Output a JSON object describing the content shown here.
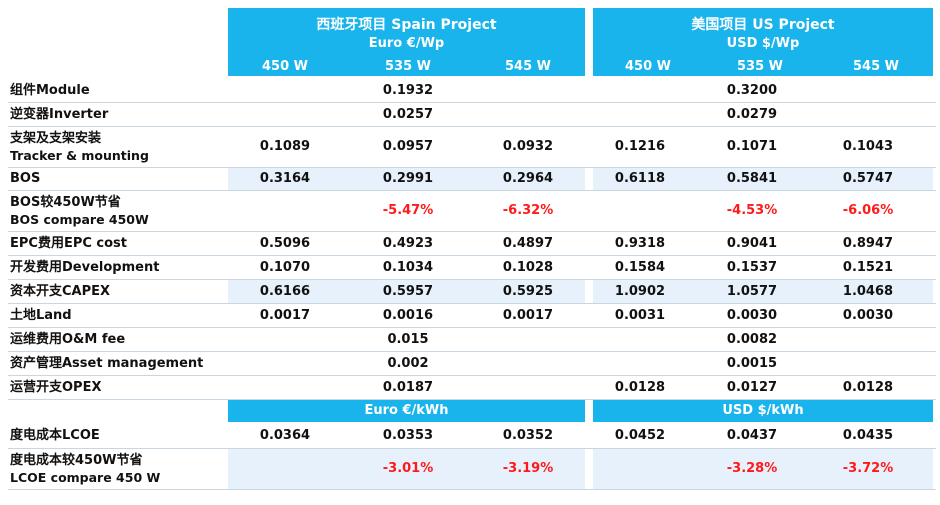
{
  "spain": {
    "title": "西班牙项目 Spain Project",
    "unit": "Euro €/Wp",
    "watts": [
      "450 W",
      "535 W",
      "545 W"
    ],
    "sub_unit": "Euro €/kWh"
  },
  "us": {
    "title": "美国项目  US Project",
    "unit": "USD $/Wp",
    "watts": [
      "450 W",
      "535 W",
      "545 W"
    ],
    "sub_unit": "USD $/kWh"
  },
  "rows": [
    {
      "label": "组件Module",
      "es": [
        "",
        "0.1932",
        ""
      ],
      "us": [
        "",
        "0.3200",
        ""
      ]
    },
    {
      "label": "逆变器Inverter",
      "es": [
        "",
        "0.0257",
        ""
      ],
      "us": [
        "",
        "0.0279",
        ""
      ]
    },
    {
      "label": "支架及支架安装",
      "label2": "Tracker & mounting",
      "es": [
        "0.1089",
        "0.0957",
        "0.0932"
      ],
      "us": [
        "0.1216",
        "0.1071",
        "0.1043"
      ]
    },
    {
      "label": "BOS",
      "es": [
        "0.3164",
        "0.2991",
        "0.2964"
      ],
      "us": [
        "0.6118",
        "0.5841",
        "0.5747"
      ]
    },
    {
      "label": "BOS较450W节省",
      "label2": "BOS compare 450W",
      "es": [
        "",
        "-5.47%",
        "-6.32%"
      ],
      "us": [
        "",
        "-4.53%",
        "-6.06%"
      ]
    },
    {
      "label": "EPC费用EPC cost",
      "es": [
        "0.5096",
        "0.4923",
        "0.4897"
      ],
      "us": [
        "0.9318",
        "0.9041",
        "0.8947"
      ]
    },
    {
      "label": "开发费用Development",
      "es": [
        "0.1070",
        "0.1034",
        "0.1028"
      ],
      "us": [
        "0.1584",
        "0.1537",
        "0.1521"
      ]
    },
    {
      "label": "资本开支CAPEX",
      "es": [
        "0.6166",
        "0.5957",
        "0.5925"
      ],
      "us": [
        "1.0902",
        "1.0577",
        "1.0468"
      ]
    },
    {
      "label": "土地Land",
      "es": [
        "0.0017",
        "0.0016",
        "0.0017"
      ],
      "us": [
        "0.0031",
        "0.0030",
        "0.0030"
      ]
    },
    {
      "label": "运维费用O&M fee",
      "es": [
        "",
        "0.015",
        ""
      ],
      "us": [
        "",
        "0.0082",
        ""
      ]
    },
    {
      "label": "资产管理Asset management",
      "es": [
        "",
        "0.002",
        ""
      ],
      "us": [
        "",
        "0.0015",
        ""
      ]
    },
    {
      "label": "运营开支OPEX",
      "es": [
        "",
        "0.0187",
        ""
      ],
      "us": [
        "0.0128",
        "0.0127",
        "0.0128"
      ]
    },
    {
      "label": "度电成本LCOE",
      "es": [
        "0.0364",
        "0.0353",
        "0.0352"
      ],
      "us": [
        "0.0452",
        "0.0437",
        "0.0435"
      ]
    },
    {
      "label": "度电成本较450W节省",
      "label2": "LCOE compare 450 W",
      "es": [
        "",
        "-3.01%",
        "-3.19%"
      ],
      "us": [
        "",
        "-3.28%",
        "-3.72%"
      ]
    }
  ],
  "colors": {
    "header": "#19b4ec",
    "negative": "#ff1a1a",
    "shade": "#e7f1fb"
  }
}
